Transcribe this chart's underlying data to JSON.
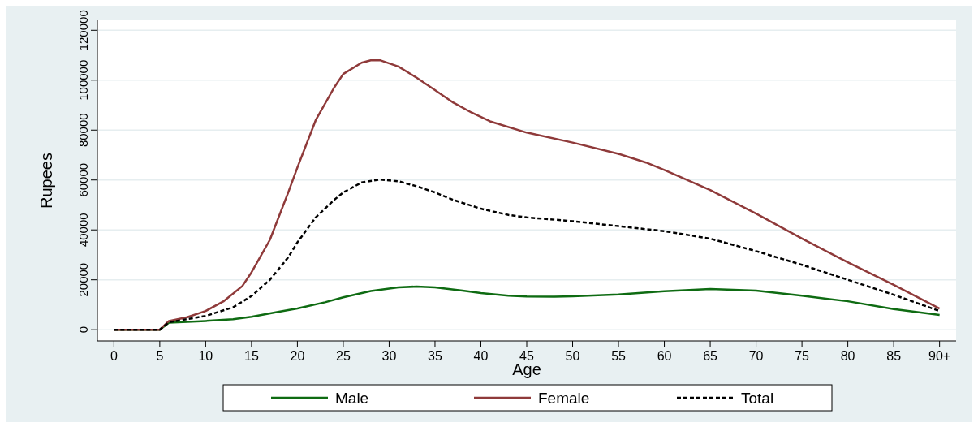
{
  "chart_data": {
    "type": "line",
    "xlabel": "Age",
    "ylabel": "Rupees",
    "xlim": [
      -1.8,
      91.8
    ],
    "xticks": [
      0,
      5,
      10,
      15,
      20,
      25,
      30,
      35,
      40,
      45,
      50,
      55,
      60,
      65,
      70,
      75,
      80,
      85,
      {
        "value": 90,
        "label": "90+"
      }
    ],
    "ylim": [
      -4500,
      124000
    ],
    "yticks": [
      0,
      20000,
      40000,
      60000,
      80000,
      100000,
      120000
    ],
    "grid": "y",
    "legend": "bottom",
    "series": [
      {
        "name": "Male",
        "color": "#0e6b12",
        "line_style": "solid",
        "x": [
          0,
          5,
          6,
          10,
          13,
          15,
          18,
          20,
          23,
          25,
          28,
          31,
          33,
          35,
          38,
          40,
          43,
          45,
          48,
          50,
          55,
          60,
          65,
          70,
          75,
          80,
          85,
          90
        ],
        "values": [
          0,
          0,
          2800,
          3500,
          4200,
          5200,
          7200,
          8500,
          11000,
          13000,
          15500,
          17000,
          17300,
          17000,
          15700,
          14700,
          13600,
          13300,
          13200,
          13400,
          14100,
          15400,
          16300,
          15700,
          13600,
          11400,
          8300,
          5900
        ]
      },
      {
        "name": "Female",
        "color": "#8f3a3a",
        "line_style": "solid",
        "x": [
          0,
          5,
          6,
          8,
          10,
          12,
          14,
          15,
          17,
          19,
          20,
          22,
          24,
          25,
          27,
          28,
          29,
          31,
          33,
          35,
          37,
          39,
          41,
          45,
          50,
          55,
          58,
          60,
          65,
          70,
          75,
          80,
          85,
          90
        ],
        "values": [
          0,
          0,
          3500,
          5000,
          7500,
          11500,
          17500,
          23000,
          36000,
          55000,
          65000,
          84000,
          97000,
          102500,
          107000,
          108000,
          108000,
          105500,
          101000,
          96000,
          91000,
          87000,
          83500,
          79000,
          75000,
          70500,
          67000,
          64000,
          56000,
          46500,
          36500,
          27000,
          18000,
          8500
        ]
      },
      {
        "name": "Total",
        "color": "#000000",
        "line_style": "dashed",
        "x": [
          0,
          5,
          6,
          10,
          13,
          15,
          17,
          19,
          20,
          22,
          24,
          25,
          27,
          29,
          31,
          33,
          35,
          37,
          40,
          43,
          45,
          50,
          55,
          60,
          65,
          70,
          75,
          80,
          85,
          90
        ],
        "values": [
          0,
          0,
          3000,
          5500,
          9000,
          13500,
          20000,
          29000,
          35000,
          45000,
          52000,
          55000,
          59000,
          60200,
          59500,
          57500,
          55000,
          52000,
          48500,
          46000,
          45000,
          43500,
          41500,
          39500,
          36500,
          31500,
          26000,
          20000,
          14000,
          7500
        ]
      }
    ]
  }
}
